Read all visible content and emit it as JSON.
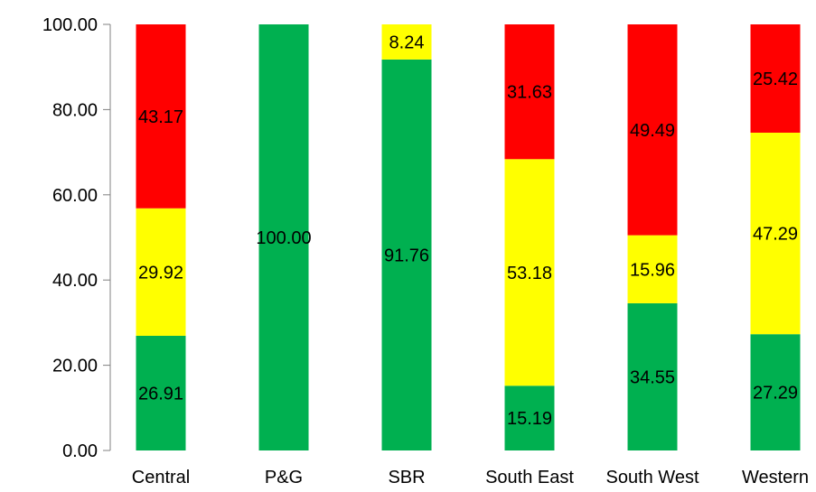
{
  "chart_data": {
    "type": "bar",
    "stacked": true,
    "categories": [
      "Central",
      "P&G",
      "SBR",
      "South East",
      "South West",
      "Western"
    ],
    "series": [
      {
        "color": "#00b050",
        "values": [
          26.91,
          100.0,
          91.76,
          15.19,
          34.55,
          27.29
        ]
      },
      {
        "color": "#ffff00",
        "values": [
          29.92,
          0,
          8.24,
          53.18,
          15.96,
          47.29
        ]
      },
      {
        "color": "#ff0000",
        "values": [
          43.17,
          0,
          0,
          31.63,
          49.49,
          25.42
        ]
      }
    ],
    "y_ticks": [
      "0.00",
      "20.00",
      "40.00",
      "60.00",
      "80.00",
      "100.00"
    ],
    "ylim": [
      0,
      100
    ],
    "grid": false,
    "legend": "none"
  }
}
